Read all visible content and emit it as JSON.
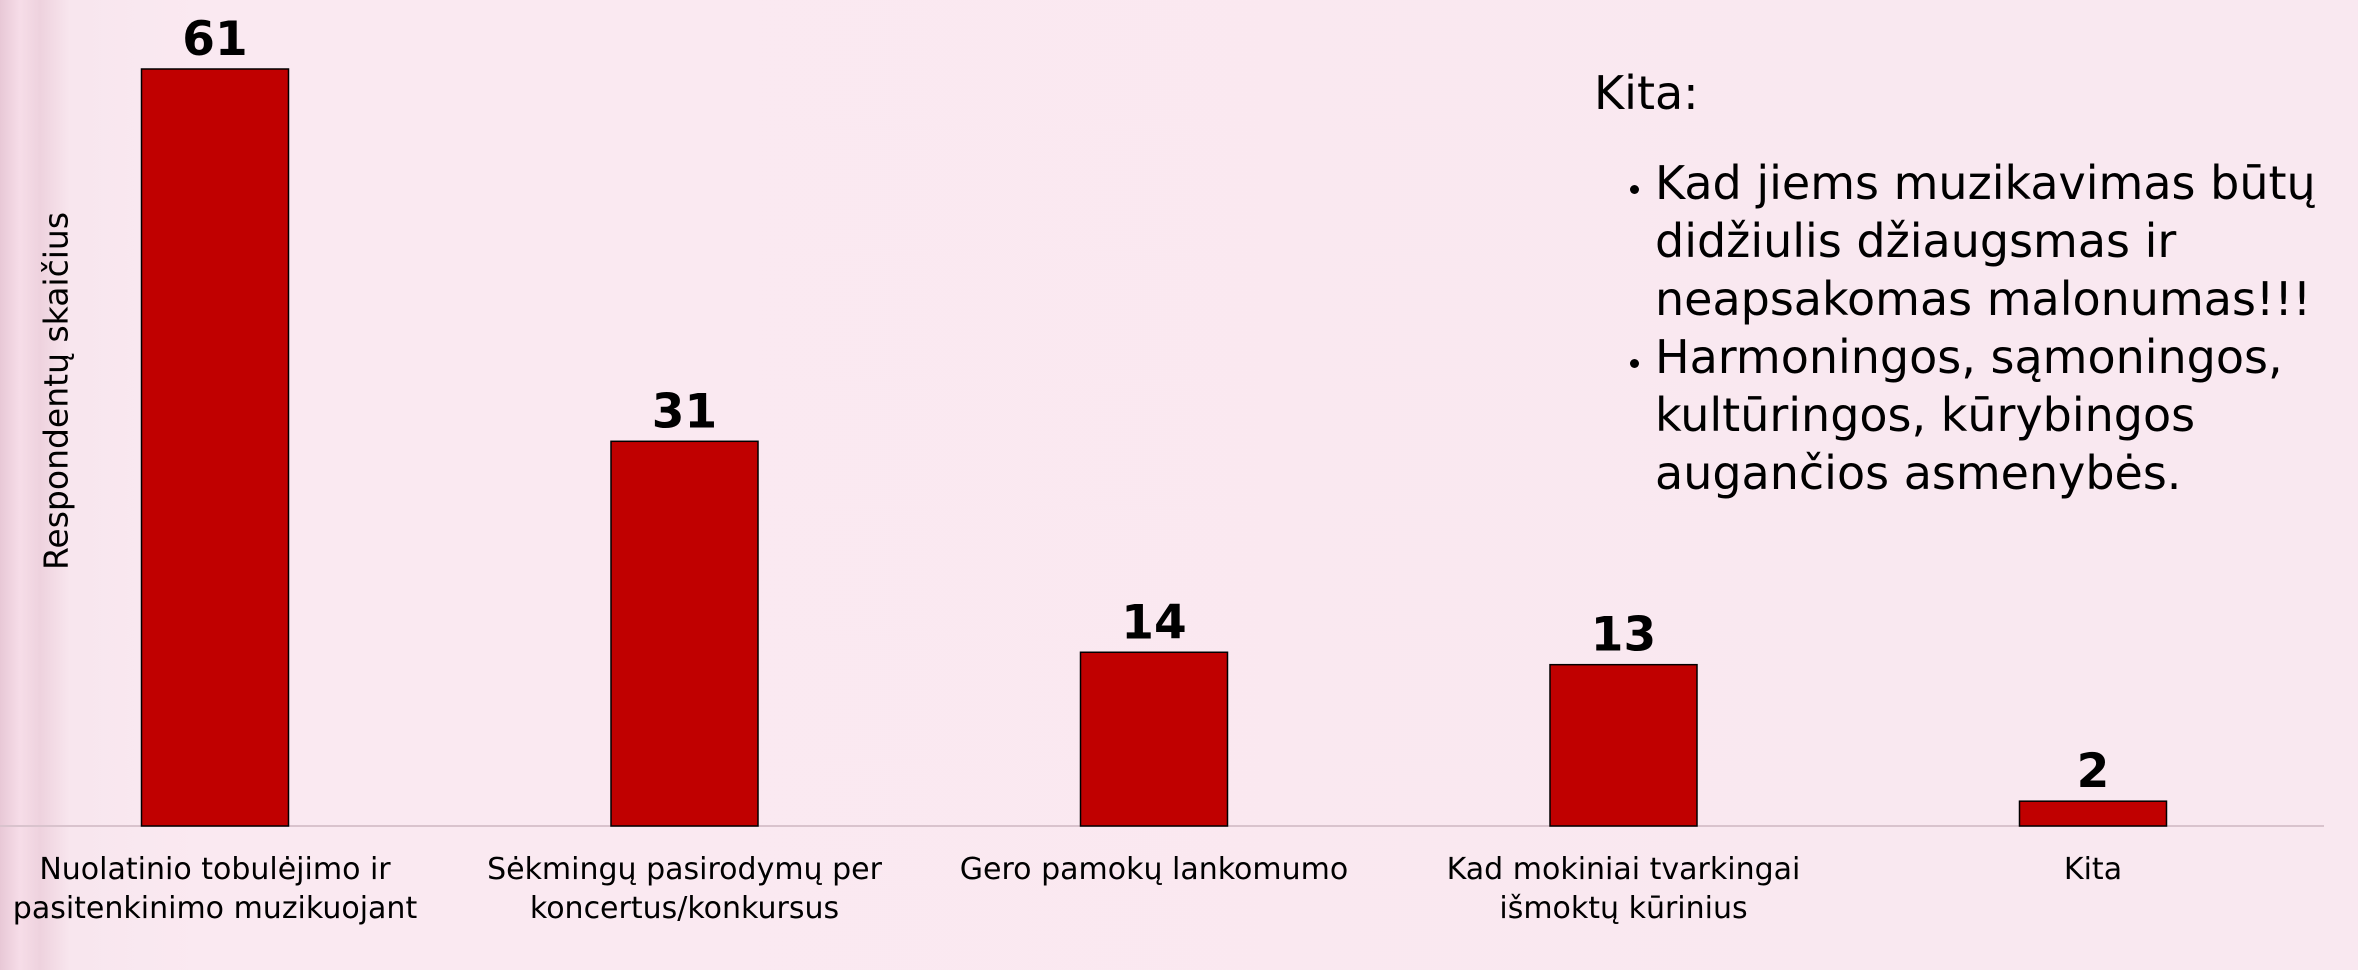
{
  "chart_data": {
    "type": "bar",
    "y_label": "Respondentų skaičius",
    "categories": [
      "Nuolatinio tobulėjimo ir pasitenkinimo muzikuojant",
      "Sėkmingų pasirodymų per koncertus/konkursus",
      "Gero pamokų lankomumo",
      "Kad mokiniai tvarkingai išmoktų kūrinius",
      "Kita"
    ],
    "values": [
      61,
      31,
      14,
      13,
      2
    ],
    "color": "#c00000",
    "ylim": [
      0,
      61
    ],
    "annotation": {
      "title": "Kita:",
      "items": [
        "Kad jiems muzikavimas būtų didžiulis džiaugsmas ir neapsakomas malonumas!!!",
        "Harmoningos, sąmoningos, kultūringos, kūrybingos augančios asmenybės."
      ]
    }
  }
}
